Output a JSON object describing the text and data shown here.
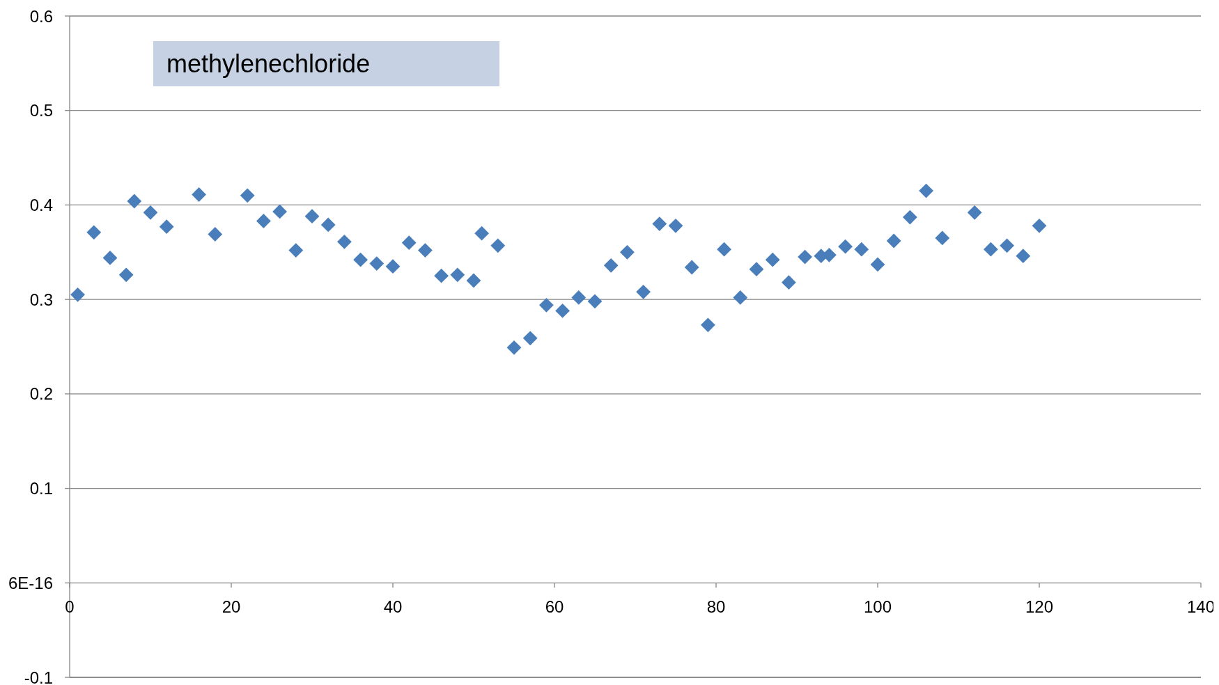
{
  "chart_data": {
    "type": "scatter",
    "title": "methylenechloride",
    "x": [
      1,
      3,
      5,
      7,
      8,
      10,
      12,
      16,
      18,
      22,
      24,
      26,
      28,
      30,
      32,
      34,
      36,
      38,
      40,
      42,
      44,
      46,
      48,
      50,
      51,
      53,
      55,
      57,
      59,
      61,
      63,
      65,
      67,
      69,
      71,
      73,
      75,
      77,
      79,
      81,
      83,
      85,
      87,
      89,
      91,
      93,
      94,
      96,
      98,
      100,
      102,
      104,
      106,
      108,
      112,
      114,
      116,
      118,
      120
    ],
    "values": [
      0.305,
      0.371,
      0.344,
      0.326,
      0.404,
      0.392,
      0.377,
      0.411,
      0.369,
      0.41,
      0.383,
      0.393,
      0.352,
      0.388,
      0.379,
      0.361,
      0.342,
      0.338,
      0.335,
      0.36,
      0.352,
      0.325,
      0.326,
      0.32,
      0.37,
      0.357,
      0.249,
      0.259,
      0.294,
      0.288,
      0.302,
      0.298,
      0.336,
      0.35,
      0.308,
      0.38,
      0.378,
      0.334,
      0.273,
      0.353,
      0.302,
      0.332,
      0.342,
      0.318,
      0.345,
      0.346,
      0.347,
      0.356,
      0.353,
      0.337,
      0.362,
      0.387,
      0.415,
      0.365,
      0.392,
      0.353,
      0.357,
      0.346,
      0.378
    ],
    "color": "#4a7ebb",
    "marker": "diamond",
    "xlim": [
      0,
      140
    ],
    "xticks": [
      0,
      20,
      40,
      60,
      80,
      100,
      120,
      140
    ],
    "ylim": [
      -0.1,
      0.6
    ],
    "yticks": [
      -0.1,
      {
        "value": 0,
        "label": "6E-16"
      },
      0.1,
      0.2,
      0.3,
      0.4,
      0.5,
      0.6
    ],
    "grid": "y"
  }
}
